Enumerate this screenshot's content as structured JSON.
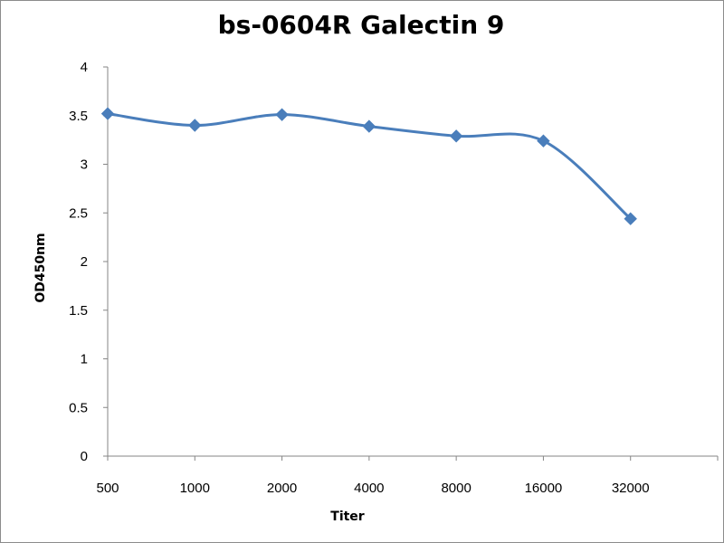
{
  "chart_data": {
    "type": "line",
    "title": "bs-0604R Galectin 9",
    "xlabel": "Titer",
    "ylabel": "OD450nm",
    "categories": [
      "500",
      "1000",
      "2000",
      "4000",
      "8000",
      "16000",
      "32000"
    ],
    "series": [
      {
        "values": [
          3.52,
          3.4,
          3.51,
          3.39,
          3.29,
          3.24,
          2.44
        ],
        "color": "#4a7ebb",
        "marker": "diamond",
        "smooth": true
      }
    ],
    "ylim": [
      0,
      4
    ],
    "yticks": [
      "0",
      "0.5",
      "1",
      "1.5",
      "2",
      "2.5",
      "3",
      "3.5",
      "4"
    ],
    "grid": false,
    "legend": "none"
  }
}
